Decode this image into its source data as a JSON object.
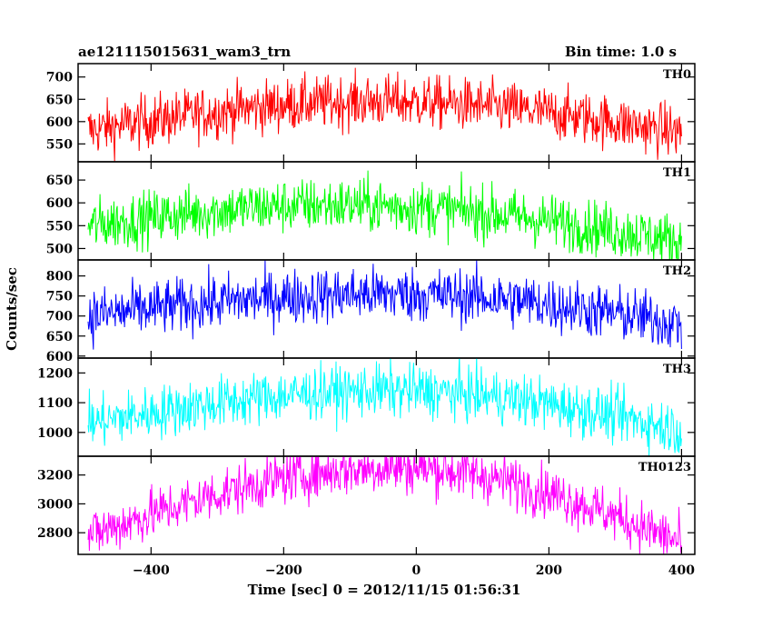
{
  "header": {
    "title": "ae121115015631_wam3_trn",
    "bin_time": "Bin time: 1.0 s"
  },
  "chart_data": {
    "type": "line",
    "title": "ae121115015631_wam3_trn",
    "subtitle": "Bin time: 1.0 s",
    "xlabel": "Time [sec] 0 = 2012/11/15 01:56:31",
    "ylabel": "Counts/sec",
    "xlim": [
      -510,
      420
    ],
    "x_ticks": [
      -400,
      -200,
      0,
      200,
      400
    ],
    "x_tick_labels": [
      "−400",
      "−200",
      "0",
      "200",
      "400"
    ],
    "bin_seconds": 1.0,
    "x_range_data": [
      -495,
      400
    ],
    "grid": false,
    "panels": [
      {
        "name": "TH0",
        "color": "#ff0000",
        "ylim": [
          510,
          730
        ],
        "yticks": [
          550,
          600,
          650,
          700
        ],
        "trend_start": 580,
        "trend_peak": 645,
        "peak_x": -60,
        "trend_end": 575,
        "noise": 30
      },
      {
        "name": "TH1",
        "color": "#00ff00",
        "ylim": [
          475,
          690
        ],
        "yticks": [
          500,
          550,
          600,
          650
        ],
        "trend_start": 550,
        "trend_peak": 595,
        "peak_x": -120,
        "trend_end": 515,
        "noise": 30
      },
      {
        "name": "TH2",
        "color": "#0000ff",
        "ylim": [
          595,
          840
        ],
        "yticks": [
          600,
          650,
          700,
          750,
          800
        ],
        "trend_start": 700,
        "trend_peak": 755,
        "peak_x": -40,
        "trend_end": 680,
        "noise": 35
      },
      {
        "name": "TH3",
        "color": "#00ffff",
        "ylim": [
          920,
          1250
        ],
        "yticks": [
          1000,
          1100,
          1200
        ],
        "trend_start": 1030,
        "trend_peak": 1140,
        "peak_x": -40,
        "trend_end": 1010,
        "noise": 45
      },
      {
        "name": "TH0123",
        "color": "#ff00ff",
        "ylim": [
          2650,
          3330
        ],
        "yticks": [
          2800,
          3000,
          3200
        ],
        "trend_start": 2780,
        "trend_peak": 3250,
        "peak_x": -30,
        "trend_end": 2730,
        "noise": 90
      }
    ]
  }
}
